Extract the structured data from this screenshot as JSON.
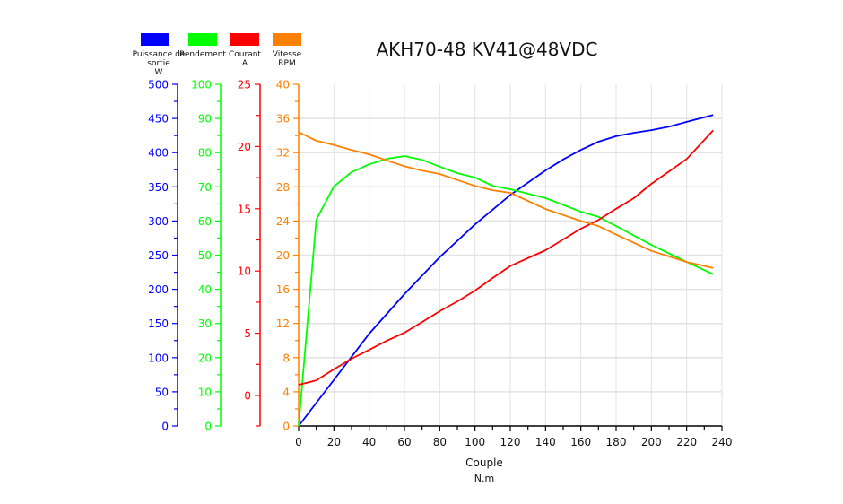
{
  "chart_data": {
    "type": "line",
    "title": "AKH70-48 KV41@48VDC",
    "xlabel": "Couple",
    "xunit": "N.m",
    "xlim": [
      0,
      240
    ],
    "xticks": [
      0,
      20,
      40,
      60,
      80,
      100,
      120,
      140,
      160,
      180,
      200,
      220,
      240
    ],
    "grid": true,
    "legend_position": "top-left",
    "axes": [
      {
        "id": "power",
        "label": "Puissance de sortie",
        "unit": "W",
        "color": "#0000ff",
        "ylim": [
          0,
          500
        ],
        "ticks": [
          0,
          50,
          100,
          150,
          200,
          250,
          300,
          350,
          400,
          450,
          500
        ]
      },
      {
        "id": "eff",
        "label": "Rendement",
        "unit": "",
        "color": "#00ff00",
        "ylim": [
          0,
          100
        ],
        "ticks": [
          0,
          10,
          20,
          30,
          40,
          50,
          60,
          70,
          80,
          90,
          100
        ]
      },
      {
        "id": "current",
        "label": "Courant",
        "unit": "A",
        "color": "#ff0000",
        "ylim": [
          -2.45,
          25
        ],
        "ticks": [
          0,
          5,
          10,
          15,
          20,
          25
        ]
      },
      {
        "id": "speed",
        "label": "Vitesse",
        "unit": "RPM",
        "color": "#ff8000",
        "ylim": [
          0,
          40
        ],
        "ticks": [
          0,
          4,
          8,
          12,
          16,
          20,
          24,
          28,
          32,
          36,
          40
        ]
      }
    ],
    "series": [
      {
        "name": "Puissance de sortie",
        "axis": "power",
        "color": "#0000ff",
        "x": [
          0,
          40,
          60,
          80,
          100,
          120,
          140,
          150,
          160,
          170,
          180,
          190,
          200,
          210,
          220,
          235
        ],
        "y": [
          0,
          135,
          193,
          247,
          295,
          338,
          374,
          390,
          404,
          416,
          424,
          429,
          433,
          438,
          445,
          455
        ]
      },
      {
        "name": "Rendement",
        "axis": "eff",
        "color": "#00ff00",
        "x": [
          0,
          10,
          20,
          30,
          40,
          50,
          60,
          70,
          80,
          90,
          100,
          110,
          120,
          140,
          160,
          170,
          180,
          200,
          220,
          235
        ],
        "y": [
          0,
          60.4,
          70.1,
          74.3,
          76.6,
          78.2,
          79,
          77.9,
          75.9,
          74,
          72.7,
          70.3,
          69.3,
          66.7,
          62.7,
          61.2,
          58.5,
          53,
          48,
          44.4
        ]
      },
      {
        "name": "Courant",
        "axis": "current",
        "color": "#ff0000",
        "x": [
          0,
          10,
          20,
          30,
          40,
          50,
          60,
          70,
          80,
          90,
          100,
          110,
          120,
          140,
          160,
          170,
          180,
          190,
          200,
          220,
          235
        ],
        "y": [
          0.86,
          1.22,
          2.1,
          2.95,
          3.67,
          4.4,
          5.04,
          5.9,
          6.77,
          7.56,
          8.43,
          9.44,
          10.4,
          11.67,
          13.4,
          14.1,
          15,
          15.85,
          17,
          19,
          21.3
        ]
      },
      {
        "name": "Vitesse",
        "axis": "speed",
        "color": "#ff8000",
        "x": [
          0,
          10,
          20,
          30,
          40,
          50,
          60,
          70,
          80,
          90,
          100,
          110,
          120,
          140,
          160,
          170,
          180,
          200,
          220,
          235
        ],
        "y": [
          34.4,
          33.4,
          32.9,
          32.3,
          31.8,
          31.1,
          30.4,
          29.9,
          29.5,
          28.8,
          28.1,
          27.6,
          27.3,
          25.4,
          24,
          23.4,
          22.4,
          20.5,
          19.2,
          18.5
        ]
      }
    ]
  }
}
